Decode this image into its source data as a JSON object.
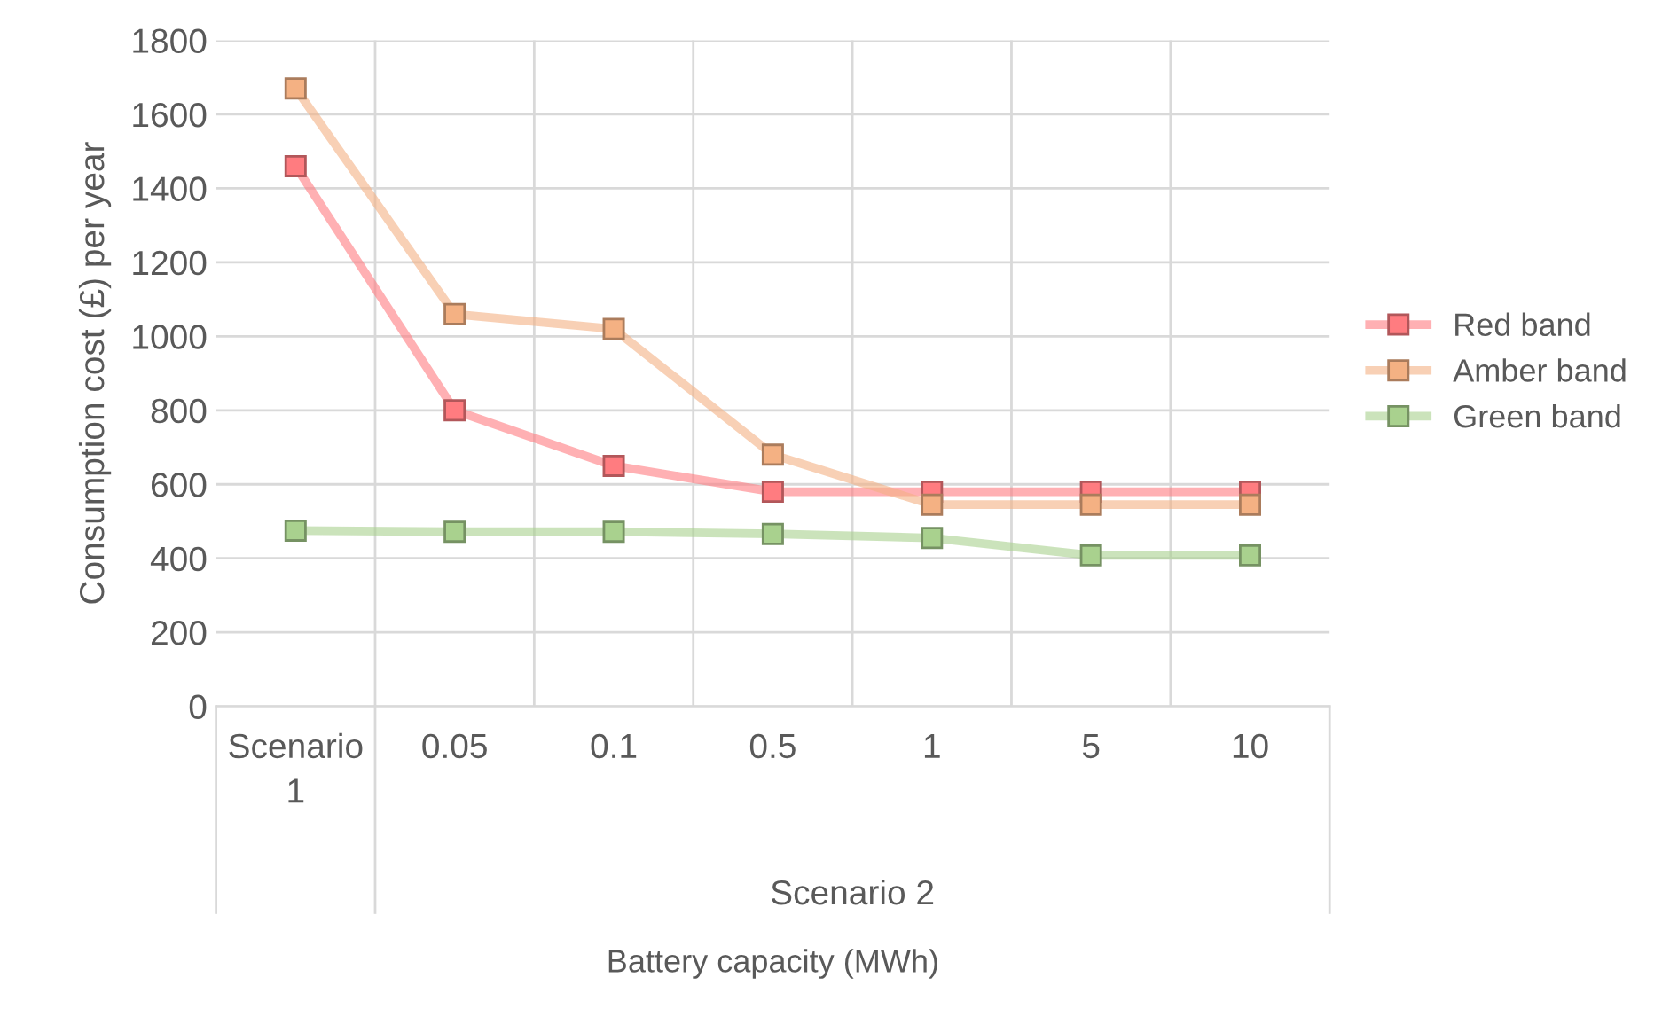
{
  "chart_data": {
    "type": "line",
    "xlabel": "Battery capacity (MWh)",
    "ylabel": "Consumption cost (£) per year",
    "categories": [
      "Scenario 1",
      "0.05",
      "0.1",
      "0.5",
      "1",
      "5",
      "10"
    ],
    "series": [
      {
        "name": "Red band",
        "color": "#ff7c80",
        "values": [
          1460,
          800,
          650,
          580,
          580,
          580,
          580
        ]
      },
      {
        "name": "Amber band",
        "color": "#f4b183",
        "values": [
          1670,
          1060,
          1020,
          680,
          545,
          545,
          545
        ]
      },
      {
        "name": "Green band",
        "color": "#a9d18e",
        "values": [
          475,
          472,
          472,
          466,
          455,
          408,
          408
        ]
      }
    ],
    "annotations": [
      "Scenario 2"
    ],
    "ylim": [
      0,
      1800
    ],
    "yticks": [
      0,
      200,
      400,
      600,
      800,
      1000,
      1200,
      1400,
      1600,
      1800
    ],
    "grid": true,
    "legend": "right",
    "marker": "square",
    "line_style": "solid"
  }
}
